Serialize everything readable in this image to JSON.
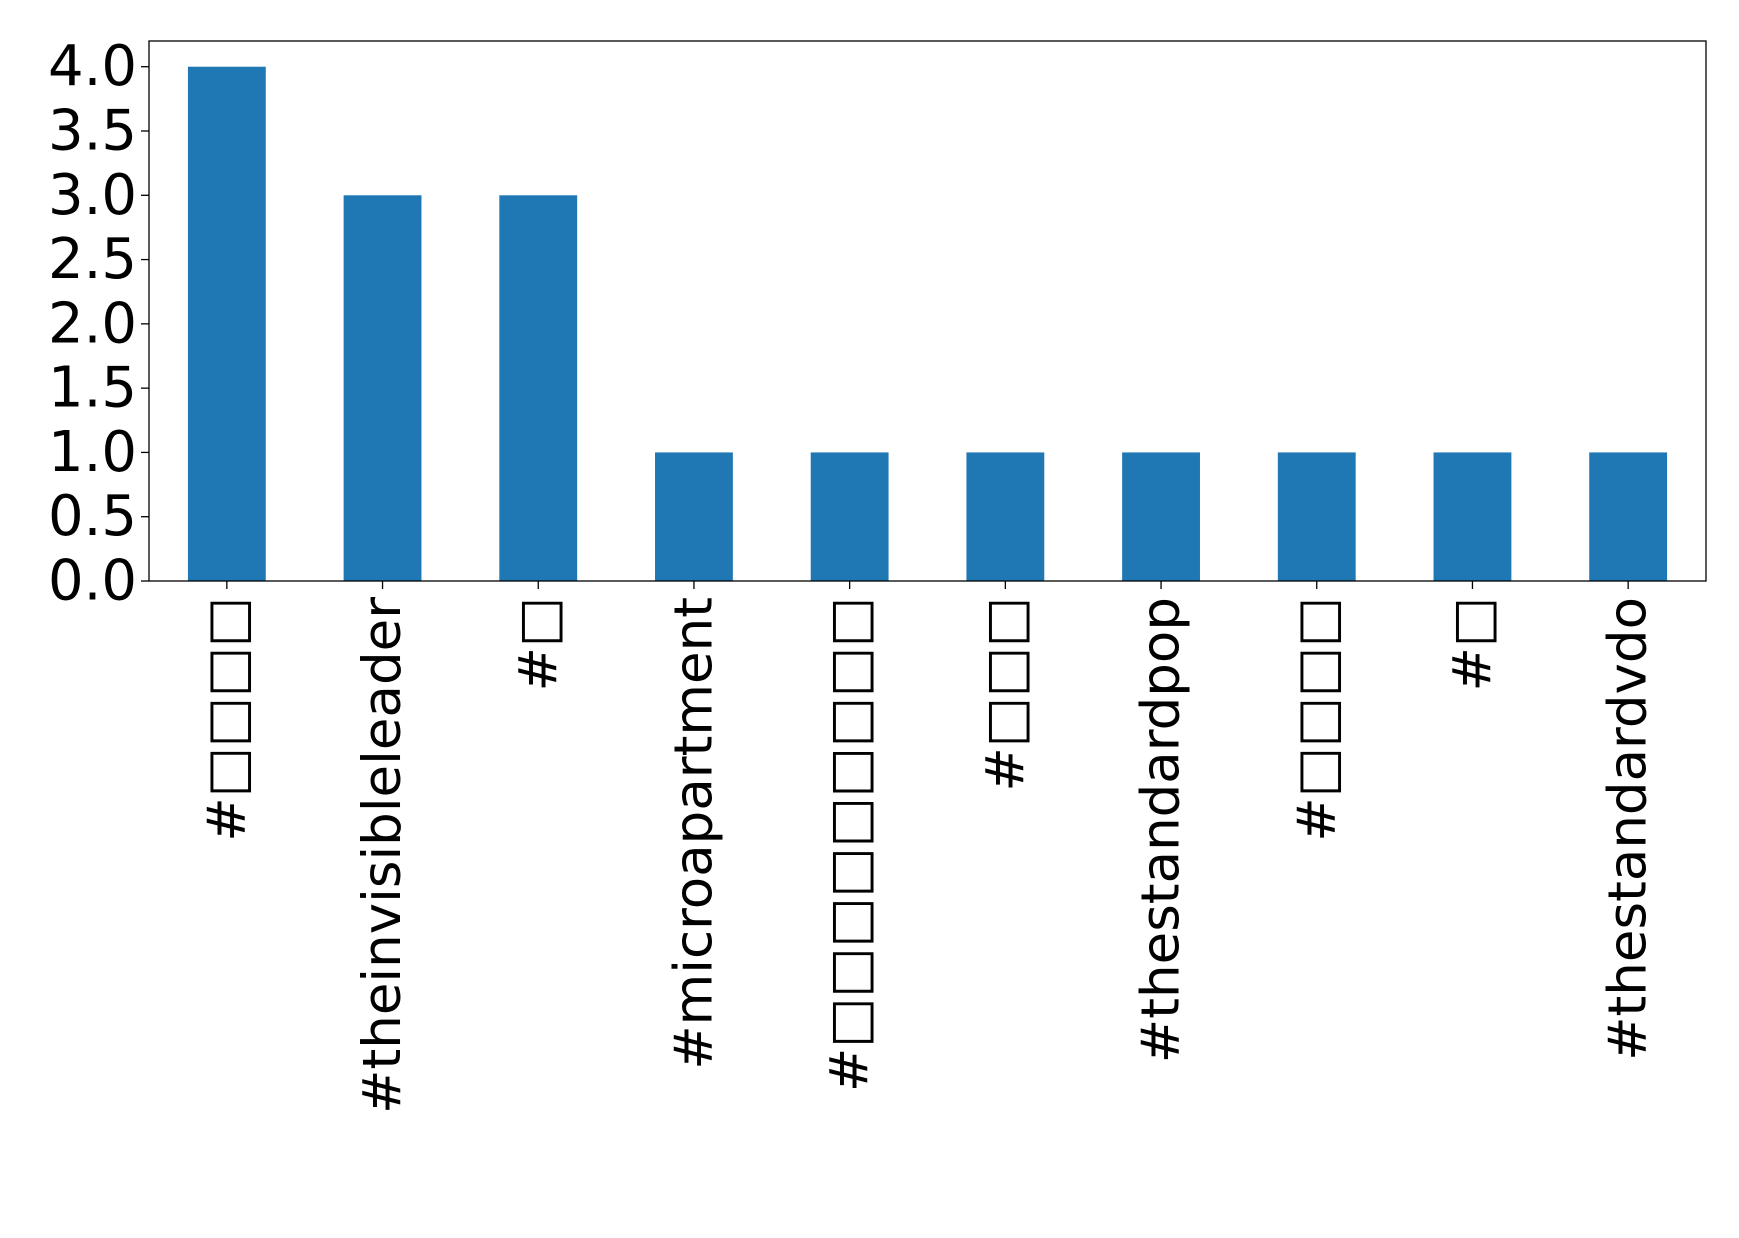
{
  "chart_data": {
    "type": "bar",
    "title": "",
    "xlabel": "",
    "ylabel": "",
    "categories": [
      "#□□□□",
      "#theinvisibleleader",
      "#□",
      "#microapartment",
      "#□□□□□□□□□",
      "#□□□",
      "#thestandardpop",
      "#□□□□",
      "#□",
      "#thestandardvdo"
    ],
    "values": [
      4,
      3,
      3,
      1,
      1,
      1,
      1,
      1,
      1,
      1
    ],
    "ylim": [
      0,
      4.2
    ],
    "yticks": [
      "0.0",
      "0.5",
      "1.0",
      "1.5",
      "2.0",
      "2.5",
      "3.0",
      "3.5",
      "4.0"
    ],
    "ytick_values": [
      0,
      0.5,
      1,
      1.5,
      2,
      2.5,
      3,
      3.5,
      4
    ],
    "bar_color": "#1f77b4",
    "grid": false,
    "legend": "none"
  }
}
